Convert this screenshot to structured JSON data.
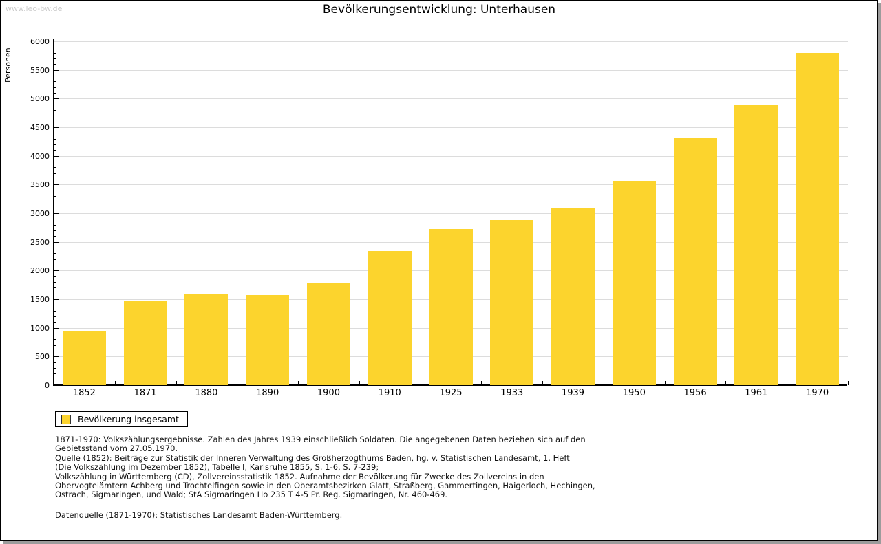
{
  "page": {
    "watermark": "www.leo-bw.de",
    "title": "Bevölkerungsentwicklung: Unterhausen"
  },
  "chart_data": {
    "type": "bar",
    "title": "Bevölkerungsentwicklung: Unterhausen",
    "xlabel": "",
    "ylabel": "Personen",
    "categories": [
      "1852",
      "1871",
      "1880",
      "1890",
      "1900",
      "1910",
      "1925",
      "1933",
      "1939",
      "1950",
      "1956",
      "1961",
      "1970"
    ],
    "series": [
      {
        "name": "Bevölkerung insgesamt",
        "values": [
          950,
          1460,
          1590,
          1570,
          1780,
          2340,
          2720,
          2880,
          3080,
          3560,
          4320,
          4900,
          5800
        ]
      }
    ],
    "ylim": [
      0,
      6000
    ],
    "ytick_major_step": 500,
    "ytick_minor_step": 100,
    "grid": true,
    "legend_position": "bottom-left",
    "bar_color": "#FCD42D"
  },
  "legend": {
    "label": "Bevölkerung insgesamt",
    "swatch_color": "#FCD42D"
  },
  "footer": {
    "lines": [
      "1871-1970: Volkszählungsergebnisse. Zahlen des Jahres 1939 einschließlich Soldaten. Die angegebenen Daten beziehen sich auf den",
      "Gebietsstand vom 27.05.1970.",
      "Quelle (1852): Beiträge zur Statistik der Inneren Verwaltung des Großherzogthums Baden, hg. v. Statistischen Landesamt, 1. Heft",
      "(Die Volkszählung im Dezember 1852), Tabelle I, Karlsruhe 1855, S. 1-6, S. 7-239;",
      "Volkszählung in Württemberg (CD), Zollvereinsstatistik 1852. Aufnahme der Bevölkerung für Zwecke des Zollvereins in den",
      "Obervogteiämtern Achberg und Trochtelfingen sowie in den Oberamtsbezirken Glatt, Straßberg, Gammertingen, Haigerloch, Hechingen,",
      "Ostrach, Sigmaringen, und Wald; StA Sigmaringen Ho 235 T 4-5 Pr. Reg. Sigmaringen, Nr. 460-469."
    ],
    "datenquelle": "Datenquelle (1871-1970): Statistisches Landesamt Baden-Württemberg."
  },
  "colors": {
    "bar": "#FCD42D",
    "grid": "#DCDCDC",
    "axis": "#000000",
    "watermark": "#CCCCCC",
    "shadow": "#9C9C9C"
  }
}
